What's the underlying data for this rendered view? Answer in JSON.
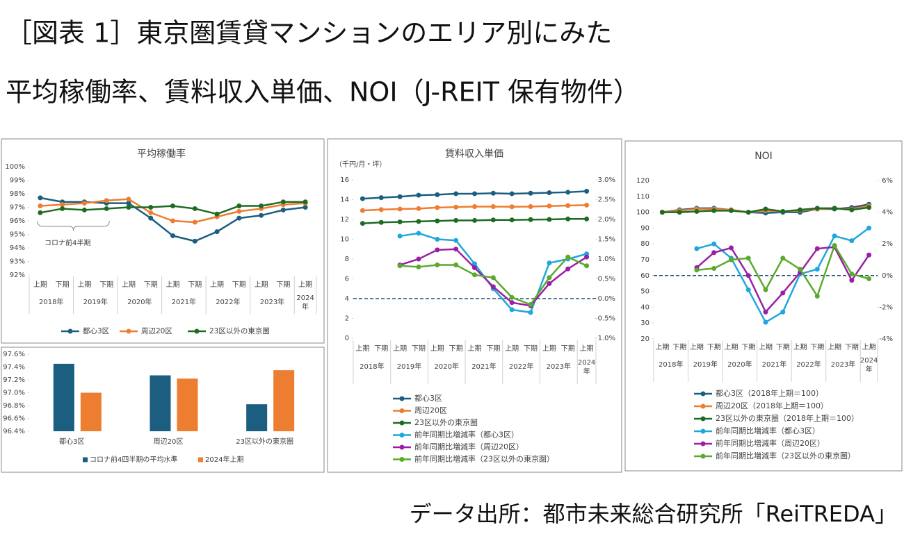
{
  "header": {
    "title_lines": [
      "［図表 1］東京圏賃貸マンションのエリア別にみた",
      "平均稼働率、賃料収入単価、NOI（J-REIT 保有物件）"
    ],
    "source": "データ出所：都市未来総合研究所「ReiTREDA」"
  },
  "chart_data": [
    {
      "type": "line",
      "title": "平均稼働率",
      "categories": [
        "上期",
        "下期",
        "上期",
        "下期",
        "上期",
        "下期",
        "上期",
        "下期",
        "上期",
        "下期",
        "上期",
        "下期",
        "上期"
      ],
      "category_groups": [
        "2018年",
        "2019年",
        "2020年",
        "2021年",
        "2022年",
        "2023年",
        "2024年"
      ],
      "ylim": [
        92,
        100
      ],
      "yticks": [
        {
          "value": 92,
          "label": "92%"
        },
        {
          "value": 93,
          "label": "93%"
        },
        {
          "value": 94,
          "label": "94%"
        },
        {
          "value": 95,
          "label": "95%"
        },
        {
          "value": 96,
          "label": "96%"
        },
        {
          "value": 97,
          "label": "97%"
        },
        {
          "value": 98,
          "label": "98%"
        },
        {
          "value": 99,
          "label": "99%"
        },
        {
          "value": 100,
          "label": "100%"
        }
      ],
      "annotations": [
        "コロナ前4半期"
      ],
      "legend": "bottom",
      "series": [
        {
          "name": "都心3区",
          "color": "#1b5e80",
          "values": [
            97.7,
            97.4,
            97.4,
            97.3,
            97.3,
            96.2,
            94.9,
            94.5,
            95.2,
            96.2,
            96.4,
            96.8,
            97.0
          ]
        },
        {
          "name": "周辺20区",
          "color": "#ed7d31",
          "values": [
            97.1,
            97.2,
            97.3,
            97.5,
            97.6,
            96.6,
            96.0,
            95.9,
            96.3,
            96.7,
            96.9,
            97.2,
            97.3
          ]
        },
        {
          "name": "23区以外の東京圏",
          "color": "#1e6b23",
          "values": [
            96.6,
            96.9,
            96.8,
            96.9,
            97.0,
            97.0,
            97.1,
            96.9,
            96.5,
            97.1,
            97.1,
            97.4,
            97.4
          ]
        }
      ]
    },
    {
      "type": "bar",
      "categories": [
        "都心3区",
        "周辺20区",
        "23区以外の東京圏"
      ],
      "ylim": [
        96.4,
        97.6
      ],
      "yticks": [
        {
          "value": 96.4,
          "label": "96.4%"
        },
        {
          "value": 96.6,
          "label": "96.6%"
        },
        {
          "value": 96.8,
          "label": "96.8%"
        },
        {
          "value": 97.0,
          "label": "97.0%"
        },
        {
          "value": 97.2,
          "label": "97.2%"
        },
        {
          "value": 97.4,
          "label": "97.4%"
        },
        {
          "value": 97.6,
          "label": "97.6%"
        }
      ],
      "legend": "bottom",
      "series": [
        {
          "name": "コロナ前4四半期の平均水準",
          "color": "#1b5e80",
          "values": [
            97.45,
            97.27,
            96.82
          ]
        },
        {
          "name": "2024年上期",
          "color": "#ed7d31",
          "values": [
            97.0,
            97.22,
            97.35
          ]
        }
      ]
    },
    {
      "type": "line",
      "title": "賃料収入単価",
      "y_label": "（千円/月・坪）",
      "categories": [
        "上期",
        "下期",
        "上期",
        "下期",
        "上期",
        "下期",
        "上期",
        "下期",
        "上期",
        "下期",
        "上期",
        "下期",
        "上期"
      ],
      "category_groups": [
        "2018年",
        "2019年",
        "2020年",
        "2021年",
        "2022年",
        "2023年",
        "2024年"
      ],
      "ylim": [
        0,
        16
      ],
      "yticks": [
        0,
        2,
        4,
        6,
        8,
        10,
        12,
        14,
        16
      ],
      "y2lim": [
        -1,
        3
      ],
      "y2ticks": [
        {
          "value": -1,
          "label": "-1.0%"
        },
        {
          "value": -0.5,
          "label": "-0.5%"
        },
        {
          "value": 0,
          "label": "0.0%"
        },
        {
          "value": 0.5,
          "label": "0.5%"
        },
        {
          "value": 1,
          "label": "1.0%"
        },
        {
          "value": 1.5,
          "label": "1.5%"
        },
        {
          "value": 2,
          "label": "2.0%"
        },
        {
          "value": 2.5,
          "label": "2.5%"
        },
        {
          "value": 3,
          "label": "3.0%"
        }
      ],
      "reference_lines": [
        {
          "axis": "y2",
          "value": 0
        }
      ],
      "legend": "bottom",
      "series": [
        {
          "name": "都心3区",
          "color": "#1b5e80",
          "values": [
            14.1,
            14.2,
            14.3,
            14.45,
            14.5,
            14.6,
            14.6,
            14.65,
            14.6,
            14.65,
            14.7,
            14.75,
            14.85
          ]
        },
        {
          "name": "周辺20区",
          "color": "#ed7d31",
          "values": [
            12.9,
            13.0,
            13.05,
            13.1,
            13.2,
            13.25,
            13.3,
            13.3,
            13.28,
            13.3,
            13.35,
            13.4,
            13.45
          ]
        },
        {
          "name": "23区以外の東京圏",
          "color": "#1e6b23",
          "values": [
            11.6,
            11.7,
            11.75,
            11.8,
            11.85,
            11.9,
            11.9,
            11.95,
            11.95,
            11.98,
            12.0,
            12.05,
            12.05
          ]
        },
        {
          "name": "前年同期比増減率（都心3区）",
          "color": "#1fa7dc",
          "axis": "y2",
          "values": [
            null,
            null,
            1.58,
            1.65,
            1.5,
            1.47,
            0.88,
            0.25,
            -0.28,
            -0.35,
            0.9,
            1.0,
            1.13
          ]
        },
        {
          "name": "前年同期比増減率（周辺20区）",
          "color": "#9b1fa6",
          "axis": "y2",
          "values": [
            null,
            null,
            0.85,
            1.0,
            1.23,
            1.25,
            0.78,
            0.3,
            -0.1,
            -0.18,
            0.38,
            0.75,
            1.05
          ]
        },
        {
          "name": "前年同期比増減率（23区以外の東京圏）",
          "color": "#5aaa2e",
          "axis": "y2",
          "values": [
            null,
            null,
            0.83,
            0.8,
            0.85,
            0.85,
            0.6,
            0.53,
            0.03,
            -0.15,
            0.53,
            1.05,
            0.83
          ]
        }
      ]
    },
    {
      "type": "line",
      "title": "NOI",
      "categories": [
        "上期",
        "下期",
        "上期",
        "下期",
        "上期",
        "下期",
        "上期",
        "下期",
        "上期",
        "下期",
        "上期",
        "下期",
        "上期"
      ],
      "category_groups": [
        "2018年",
        "2019年",
        "2020年",
        "2021年",
        "2022年",
        "2023年",
        "2024年"
      ],
      "ylim": [
        20,
        120
      ],
      "yticks": [
        20,
        30,
        40,
        50,
        60,
        70,
        80,
        90,
        100,
        110,
        120
      ],
      "y2lim": [
        -4,
        6
      ],
      "y2ticks": [
        {
          "value": -4,
          "label": "-4%"
        },
        {
          "value": -2,
          "label": "-2%"
        },
        {
          "value": 0,
          "label": "0%"
        },
        {
          "value": 2,
          "label": "2%"
        },
        {
          "value": 4,
          "label": "4%"
        },
        {
          "value": 6,
          "label": "6%"
        }
      ],
      "reference_lines": [
        {
          "axis": "y2",
          "value": 0
        }
      ],
      "legend": "bottom",
      "series": [
        {
          "name": "都心3区（2018年上期＝100）",
          "color": "#1b5e80",
          "values": [
            100,
            101.5,
            102.5,
            102.5,
            101.5,
            100,
            99.5,
            100,
            100,
            102,
            102,
            103,
            105
          ]
        },
        {
          "name": "周辺20区（2018年上期＝100）",
          "color": "#ed7d31",
          "values": [
            100,
            101,
            102,
            102,
            101.5,
            100,
            101,
            100.5,
            101,
            102,
            102.5,
            102,
            104
          ]
        },
        {
          "name": "23区以外の東京圏（2018年上期＝100）",
          "color": "#1e6b23",
          "values": [
            100,
            100,
            100.5,
            101,
            101,
            100,
            102,
            100.5,
            101.5,
            102.5,
            102.5,
            101.5,
            103
          ]
        },
        {
          "name": "前年同期比増減率（都心3区）",
          "color": "#1fa7dc",
          "axis": "y2",
          "values": [
            null,
            null,
            1.7,
            2.0,
            1.1,
            -0.9,
            -2.95,
            -2.3,
            0.1,
            0.4,
            2.5,
            2.2,
            3.0
          ]
        },
        {
          "name": "前年同期比増減率（周辺20区）",
          "color": "#9b1fa6",
          "axis": "y2",
          "values": [
            null,
            null,
            0.5,
            1.45,
            1.75,
            0,
            -2.3,
            -1.1,
            0.2,
            1.7,
            1.8,
            -0.3,
            1.3
          ]
        },
        {
          "name": "前年同期比増減率（23区以外の東京圏）",
          "color": "#5aaa2e",
          "axis": "y2",
          "values": [
            null,
            null,
            0.35,
            0.45,
            1.0,
            1.1,
            -0.9,
            1.1,
            0.4,
            -1.3,
            1.9,
            0.1,
            -0.2
          ]
        }
      ]
    }
  ]
}
